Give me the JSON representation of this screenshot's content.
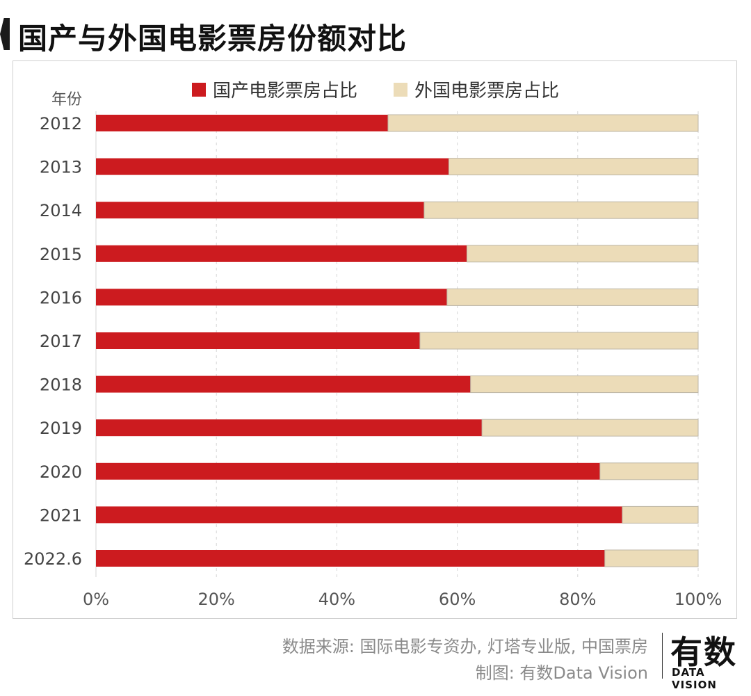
{
  "title": "国产与外国电影票房份额对比",
  "chart_data": {
    "type": "bar",
    "orientation": "horizontal",
    "stacked": true,
    "ylabel": "年份",
    "categories": [
      "2012",
      "2013",
      "2014",
      "2015",
      "2016",
      "2017",
      "2018",
      "2019",
      "2020",
      "2021",
      "2022.6"
    ],
    "series": [
      {
        "name": "国产电影票房占比",
        "color": "#cc1b1f",
        "values": [
          48.5,
          58.6,
          54.5,
          61.6,
          58.3,
          53.8,
          62.2,
          64.1,
          83.7,
          87.4,
          84.5
        ]
      },
      {
        "name": "外国电影票房占比",
        "color": "#ecdcb8",
        "values": [
          51.5,
          41.4,
          45.5,
          38.4,
          41.7,
          46.2,
          37.8,
          35.9,
          16.3,
          12.6,
          15.5
        ]
      }
    ],
    "xlim": [
      0,
      100
    ],
    "xticks": [
      "0%",
      "20%",
      "40%",
      "60%",
      "80%",
      "100%"
    ],
    "grid": true,
    "legend_position": "top-center"
  },
  "footer": {
    "source": "数据来源: 国际电影专资办, 灯塔专业版, 中国票房",
    "credit": "制图: 有数Data Vision"
  },
  "logo": {
    "main": "有数",
    "sub": "DATA VISION"
  }
}
